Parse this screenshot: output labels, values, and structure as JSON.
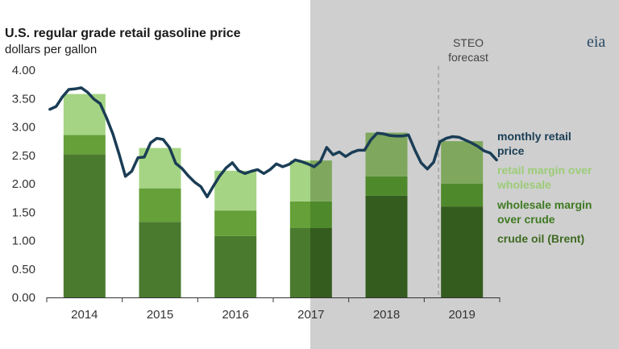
{
  "logo": "eia",
  "chart_data": {
    "type": "bar",
    "title": "U.S. regular grade retail gasoline price",
    "subtitle": "dollars per gallon",
    "categories": [
      "2014",
      "2015",
      "2016",
      "2017",
      "2018",
      "2019"
    ],
    "ylim": [
      0,
      4
    ],
    "yticks": [
      "4.00",
      "3.50",
      "3.00",
      "2.50",
      "2.00",
      "1.50",
      "1.00",
      "0.50",
      "0.00"
    ],
    "grid": false,
    "stacked": true,
    "forecast_label": [
      "STEO",
      "forecast"
    ],
    "series": [
      {
        "name": "crude oil (Brent)",
        "legend_lines": [
          "crude oil (Brent)"
        ],
        "color": "#4a7a2e",
        "shade_color": "#355c1f",
        "values": [
          2.52,
          1.33,
          1.08,
          1.22,
          1.79,
          1.6
        ]
      },
      {
        "name": "wholesale margin over crude",
        "legend_lines": [
          "wholesale margin",
          "over crude"
        ],
        "color": "#65a038",
        "shade_color": "#4e8a2b",
        "values": [
          0.34,
          0.59,
          0.45,
          0.47,
          0.34,
          0.4
        ]
      },
      {
        "name": "retail margin over wholesale",
        "legend_lines": [
          "retail margin over",
          "wholesale"
        ],
        "color": "#a5d584",
        "shade_color": "#7fa85e",
        "values": [
          0.72,
          0.71,
          0.7,
          0.72,
          0.77,
          0.75
        ]
      }
    ],
    "line_series": {
      "name": "monthly retail price",
      "legend_lines": [
        "monthly retail",
        "price"
      ],
      "color": "#1a3d55",
      "x": [
        "2014-01",
        "2014-02",
        "2014-03",
        "2014-04",
        "2014-05",
        "2014-06",
        "2014-07",
        "2014-08",
        "2014-09",
        "2014-10",
        "2014-11",
        "2014-12",
        "2015-01",
        "2015-02",
        "2015-03",
        "2015-04",
        "2015-05",
        "2015-06",
        "2015-07",
        "2015-08",
        "2015-09",
        "2015-10",
        "2015-11",
        "2015-12",
        "2016-01",
        "2016-02",
        "2016-03",
        "2016-04",
        "2016-05",
        "2016-06",
        "2016-07",
        "2016-08",
        "2016-09",
        "2016-10",
        "2016-11",
        "2016-12",
        "2017-01",
        "2017-02",
        "2017-03",
        "2017-04",
        "2017-05",
        "2017-06",
        "2017-07",
        "2017-08",
        "2017-09",
        "2017-10",
        "2017-11",
        "2017-12",
        "2018-01",
        "2018-02",
        "2018-03",
        "2018-04",
        "2018-05",
        "2018-06",
        "2018-07",
        "2018-08",
        "2018-09",
        "2018-10",
        "2018-11",
        "2018-12",
        "2019-01",
        "2019-02",
        "2019-03",
        "2019-04",
        "2019-05",
        "2019-06",
        "2019-07",
        "2019-08",
        "2019-09",
        "2019-10",
        "2019-11",
        "2019-12"
      ],
      "values": [
        3.31,
        3.36,
        3.53,
        3.66,
        3.67,
        3.69,
        3.61,
        3.49,
        3.41,
        3.16,
        2.88,
        2.52,
        2.13,
        2.22,
        2.46,
        2.47,
        2.72,
        2.8,
        2.78,
        2.64,
        2.36,
        2.27,
        2.14,
        2.03,
        1.95,
        1.77,
        1.96,
        2.14,
        2.28,
        2.37,
        2.23,
        2.18,
        2.22,
        2.25,
        2.18,
        2.25,
        2.35,
        2.3,
        2.34,
        2.42,
        2.39,
        2.35,
        2.3,
        2.39,
        2.64,
        2.51,
        2.56,
        2.48,
        2.55,
        2.59,
        2.59,
        2.77,
        2.89,
        2.88,
        2.85,
        2.84,
        2.84,
        2.86,
        2.6,
        2.37,
        2.26,
        2.38,
        2.74,
        2.8,
        2.83,
        2.82,
        2.77,
        2.72,
        2.66,
        2.58,
        2.54,
        2.42
      ]
    },
    "forecast_start": "2017-04"
  }
}
